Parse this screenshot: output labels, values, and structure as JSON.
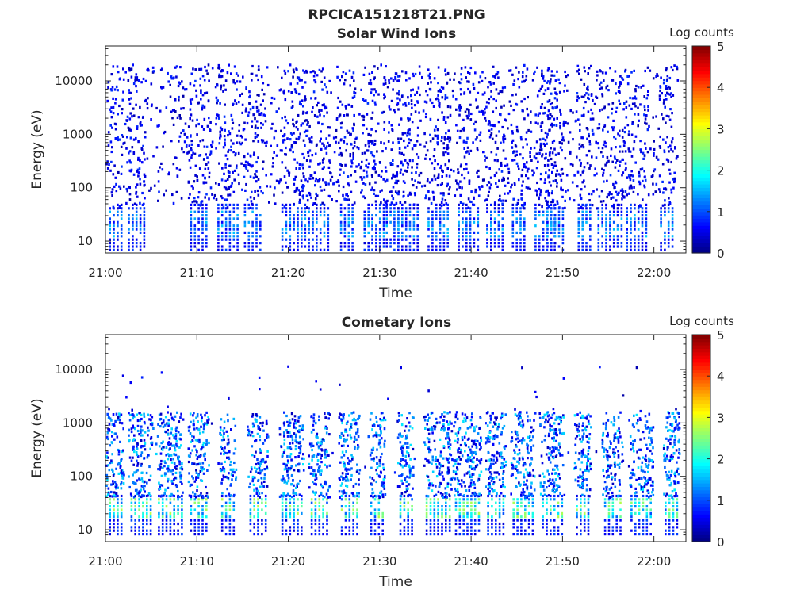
{
  "figure": {
    "title": "RPCICA151218T21.PNG"
  },
  "colorbar": {
    "label": "Log counts",
    "ticks": [
      0,
      1,
      2,
      3,
      4,
      5
    ],
    "colormap": "jet"
  },
  "chart_data": [
    {
      "type": "heatmap",
      "title": "Solar Wind Ions",
      "xlabel": "Time",
      "ylabel": "Energy (eV)",
      "x_ticks": [
        "21:00",
        "21:10",
        "21:20",
        "21:30",
        "21:40",
        "21:50",
        "22:00"
      ],
      "x_range_minutes": [
        0,
        63.5
      ],
      "y_scale": "log",
      "y_ticks": [
        10,
        100,
        1000,
        10000
      ],
      "y_range": [
        6,
        45000
      ],
      "z_label": "Log counts",
      "z_range": [
        0,
        5
      ],
      "pattern": "sparse scattered counts (log 0-1) across 100-20000 eV; dense bursts at ~10-40 eV with peaks near 1.5 log counts",
      "burst_times_minutes": [
        0.8,
        3.5,
        10.3,
        13.5,
        16.2,
        20.5,
        23.2,
        26.5,
        29.5,
        31.5,
        33.2,
        36.5,
        39.8,
        42.7,
        45.3,
        48.2,
        49.3,
        52.5,
        55.3,
        58.2,
        61.5
      ],
      "burst_energy_range_eV": [
        8,
        40
      ],
      "max_log_counts": 1.6
    },
    {
      "type": "heatmap",
      "title": "Cometary Ions",
      "xlabel": "Time",
      "ylabel": "Energy (eV)",
      "x_ticks": [
        "21:00",
        "21:10",
        "21:20",
        "21:30",
        "21:40",
        "21:50",
        "22:00"
      ],
      "x_range_minutes": [
        0,
        63.5
      ],
      "y_scale": "log",
      "y_ticks": [
        10,
        100,
        1000,
        10000
      ],
      "y_range": [
        6,
        45000
      ],
      "z_label": "Log counts",
      "z_range": [
        0,
        5
      ],
      "pattern": "periodic bursts of cometary ions concentrated at ~12-40 eV (up to ~2.8 log counts), with tails extending to ~1000-2000 eV",
      "burst_times_minutes": [
        0.8,
        4.0,
        7.2,
        10.3,
        13.5,
        16.8,
        20.5,
        23.5,
        26.8,
        29.8,
        33.0,
        36.5,
        39.7,
        42.8,
        45.8,
        49.0,
        52.3,
        55.6,
        58.7,
        62.0
      ],
      "burst_energy_range_eV": [
        12,
        40
      ],
      "max_log_counts": 2.8
    }
  ]
}
